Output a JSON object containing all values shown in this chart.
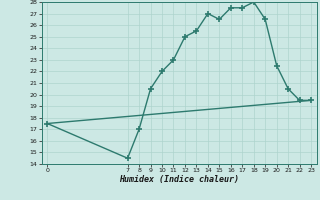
{
  "x": [
    0,
    7,
    8,
    9,
    10,
    11,
    12,
    13,
    14,
    15,
    16,
    17,
    18,
    19,
    20,
    21,
    22,
    23
  ],
  "y": [
    17.5,
    14.5,
    17.0,
    20.5,
    22.0,
    23.0,
    25.0,
    25.5,
    27.0,
    26.5,
    27.5,
    27.5,
    28.0,
    26.5,
    22.5,
    20.5,
    19.5,
    19.5
  ],
  "trend_x": [
    0,
    23
  ],
  "trend_y": [
    17.5,
    19.5
  ],
  "xlim": [
    -0.5,
    23.5
  ],
  "ylim": [
    14,
    28
  ],
  "yticks": [
    14,
    15,
    16,
    17,
    18,
    19,
    20,
    21,
    22,
    23,
    24,
    25,
    26,
    27,
    28
  ],
  "xticks": [
    0,
    7,
    8,
    9,
    10,
    11,
    12,
    13,
    14,
    15,
    16,
    17,
    18,
    19,
    20,
    21,
    22,
    23
  ],
  "xlabel": "Humidex (Indice chaleur)",
  "line_color": "#2d7a6e",
  "bg_color": "#cce8e4",
  "grid_color": "#aed4ce",
  "marker": "+",
  "marker_size": 5,
  "line_width": 1.0
}
